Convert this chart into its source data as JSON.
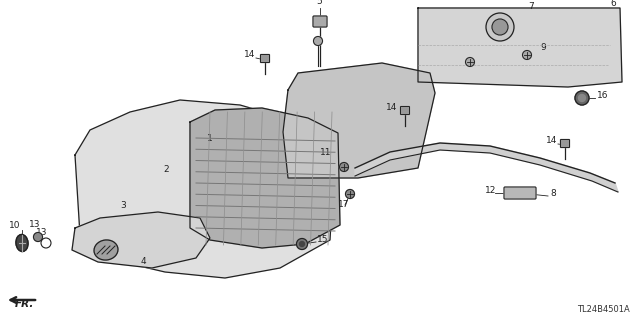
{
  "bg_color": "#ffffff",
  "line_color": "#222222",
  "diagram_id": "TL24B4501A"
}
